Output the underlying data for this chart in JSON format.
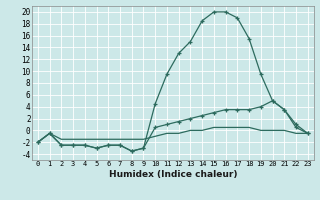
{
  "xlabel": "Humidex (Indice chaleur)",
  "bg_color": "#cce8e8",
  "line_color": "#2d6b5e",
  "xlim": [
    -0.5,
    23.5
  ],
  "ylim": [
    -5,
    21
  ],
  "yticks": [
    -4,
    -2,
    0,
    2,
    4,
    6,
    8,
    10,
    12,
    14,
    16,
    18,
    20
  ],
  "xticks": [
    0,
    1,
    2,
    3,
    4,
    5,
    6,
    7,
    8,
    9,
    10,
    11,
    12,
    13,
    14,
    15,
    16,
    17,
    18,
    19,
    20,
    21,
    22,
    23
  ],
  "curve1_x": [
    0,
    1,
    2,
    3,
    4,
    5,
    6,
    7,
    8,
    9,
    10,
    11,
    12,
    13,
    14,
    15,
    16,
    17,
    18,
    19,
    20,
    21,
    22,
    23
  ],
  "curve1_y": [
    -2,
    -0.5,
    -2.5,
    -2.5,
    -2.5,
    -3,
    -2.5,
    -2.5,
    -3.5,
    -3,
    4.5,
    9.5,
    13,
    15,
    18.5,
    20,
    20,
    19,
    15.5,
    9.5,
    5,
    3.5,
    0.5,
    -0.5
  ],
  "curve2_x": [
    0,
    1,
    2,
    3,
    4,
    5,
    6,
    7,
    8,
    9,
    10,
    11,
    12,
    13,
    14,
    15,
    16,
    17,
    18,
    19,
    20,
    21,
    22,
    23
  ],
  "curve2_y": [
    -2,
    -0.5,
    -2.5,
    -2.5,
    -2.5,
    -3,
    -2.5,
    -2.5,
    -3.5,
    -3,
    0.5,
    1.0,
    1.5,
    2.0,
    2.5,
    3.0,
    3.5,
    3.5,
    3.5,
    4.0,
    5.0,
    3.5,
    1.0,
    -0.5
  ],
  "curve3_x": [
    0,
    1,
    2,
    3,
    4,
    5,
    6,
    7,
    8,
    9,
    10,
    11,
    12,
    13,
    14,
    15,
    16,
    17,
    18,
    19,
    20,
    21,
    22,
    23
  ],
  "curve3_y": [
    -2,
    -0.5,
    -1.5,
    -1.5,
    -1.5,
    -1.5,
    -1.5,
    -1.5,
    -1.5,
    -1.5,
    -1.0,
    -0.5,
    -0.5,
    0.0,
    0.0,
    0.5,
    0.5,
    0.5,
    0.5,
    0.0,
    0.0,
    0.0,
    -0.5,
    -0.5
  ]
}
